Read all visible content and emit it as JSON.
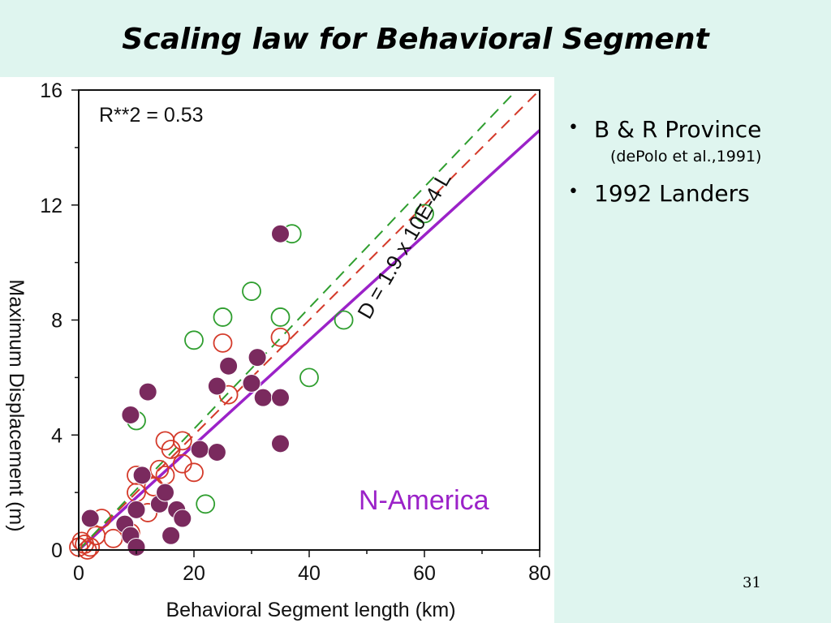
{
  "slide": {
    "title": "Scaling law for Behavioral Segment",
    "number": "31",
    "bullets": [
      {
        "text": "B & R Province",
        "sub": "(dePolo et al.,1991)"
      },
      {
        "text": "1992 Landers",
        "sub": ""
      }
    ]
  },
  "chart_data": {
    "type": "scatter",
    "title": "",
    "xlabel": "Behavioral Segment length (km)",
    "ylabel": "Maximum Displacement (m)",
    "xlim": [
      0,
      80
    ],
    "ylim": [
      0,
      16
    ],
    "x_ticks": [
      0,
      20,
      40,
      60,
      80
    ],
    "y_ticks": [
      0,
      4,
      8,
      12,
      16
    ],
    "annotations": {
      "r2": "R**2 = 0.53",
      "fit_label": "D = 1.9 x 10E-4 L",
      "region": "N-America"
    },
    "colors": {
      "filled": "#7a2a5e",
      "red_open": "#d43a2a",
      "green_open": "#2f9e2f",
      "fit": "#9b22c8",
      "region_text": "#9b22c8"
    },
    "series": [
      {
        "style": "filled",
        "points": [
          [
            2,
            1.1
          ],
          [
            8,
            0.9
          ],
          [
            9,
            0.5
          ],
          [
            10,
            0.1
          ],
          [
            10,
            1.4
          ],
          [
            11,
            2.6
          ],
          [
            9,
            4.7
          ],
          [
            12,
            5.5
          ],
          [
            14,
            1.6
          ],
          [
            15,
            2.0
          ],
          [
            16,
            0.5
          ],
          [
            17,
            1.4
          ],
          [
            18,
            1.1
          ],
          [
            21,
            3.5
          ],
          [
            24,
            3.4
          ],
          [
            24,
            5.7
          ],
          [
            26,
            6.4
          ],
          [
            30,
            5.8
          ],
          [
            31,
            6.7
          ],
          [
            32,
            5.3
          ],
          [
            35,
            5.3
          ],
          [
            35,
            3.7
          ],
          [
            35,
            11.0
          ]
        ]
      },
      {
        "style": "red_open",
        "points": [
          [
            0,
            0.1
          ],
          [
            0.5,
            0.3
          ],
          [
            1,
            0.2
          ],
          [
            1.5,
            0.0
          ],
          [
            2,
            0.1
          ],
          [
            3,
            0.5
          ],
          [
            4,
            1.1
          ],
          [
            6,
            0.4
          ],
          [
            9,
            0.6
          ],
          [
            10,
            2.0
          ],
          [
            10,
            2.6
          ],
          [
            12,
            1.3
          ],
          [
            13,
            2.2
          ],
          [
            14,
            2.8
          ],
          [
            15,
            2.6
          ],
          [
            15,
            3.8
          ],
          [
            16,
            3.5
          ],
          [
            18,
            3.8
          ],
          [
            18,
            3.0
          ],
          [
            20,
            2.7
          ],
          [
            25,
            7.2
          ],
          [
            26,
            5.4
          ],
          [
            35,
            7.4
          ]
        ]
      },
      {
        "style": "green_open",
        "points": [
          [
            10,
            4.5
          ],
          [
            20,
            7.3
          ],
          [
            22,
            1.6
          ],
          [
            25,
            8.1
          ],
          [
            30,
            9.0
          ],
          [
            35,
            8.1
          ],
          [
            37,
            11.0
          ],
          [
            40,
            6.0
          ],
          [
            46,
            8.0
          ],
          [
            60,
            11.7
          ]
        ]
      }
    ],
    "lines": [
      {
        "style": "fit",
        "dash": false,
        "from": [
          0,
          0
        ],
        "to": [
          80,
          14.6
        ]
      },
      {
        "style": "red_open",
        "dash": true,
        "from": [
          0,
          0
        ],
        "to": [
          80,
          16.0
        ]
      },
      {
        "style": "green_open",
        "dash": true,
        "from": [
          0,
          0
        ],
        "to": [
          76,
          16.0
        ]
      }
    ]
  }
}
